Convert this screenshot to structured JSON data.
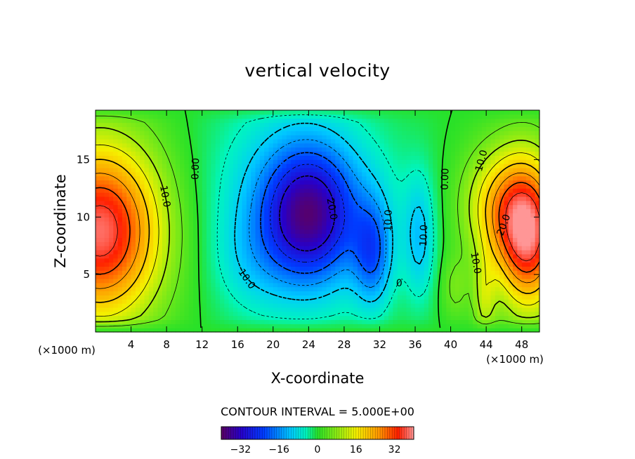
{
  "chart_data": {
    "type": "heatmap",
    "title": "vertical velocity",
    "xlabel": "X-coordinate",
    "ylabel": "Z-coordinate",
    "x_unit": "(×1000 m)",
    "z_unit": "(×1000 m)",
    "xlim": [
      0,
      50
    ],
    "ylim": [
      0,
      19.3
    ],
    "x_ticks": [
      4,
      8,
      12,
      16,
      20,
      24,
      28,
      32,
      36,
      40,
      44,
      48
    ],
    "y_ticks": [
      5,
      10,
      15
    ],
    "contour_interval_text": "CONTOUR INTERVAL = 5.000E+00",
    "contour_labels": [
      {
        "text": "10.0",
        "x": 7.8,
        "z": 11.8,
        "rot": 80
      },
      {
        "text": "0.00",
        "x": 11.3,
        "z": 14.2,
        "rot": -88
      },
      {
        "text": "20.0",
        "x": 26.6,
        "z": 10.7,
        "rot": 80
      },
      {
        "text": "10.0",
        "x": 17.0,
        "z": 4.6,
        "rot": 55
      },
      {
        "text": "10.0",
        "x": 33.0,
        "z": 9.7,
        "rot": -88
      },
      {
        "text": "10.0",
        "x": 37.0,
        "z": 8.4,
        "rot": -88
      },
      {
        "text": "0",
        "x": 34.2,
        "z": 4.2,
        "rot": 0
      },
      {
        "text": "0.00",
        "x": 39.4,
        "z": 13.3,
        "rot": -88
      },
      {
        "text": "10.0",
        "x": 43.5,
        "z": 14.9,
        "rot": -75
      },
      {
        "text": "20.0",
        "x": 46.0,
        "z": 9.3,
        "rot": -70
      },
      {
        "text": "10.0",
        "x": 42.8,
        "z": 6.0,
        "rot": 80
      }
    ],
    "colorbar": {
      "min": -40,
      "max": 40,
      "ticks": [
        -32,
        -16,
        0,
        16,
        32
      ]
    },
    "field": {
      "background": 0,
      "blobs": [
        {
          "x": 0.5,
          "z": 8.8,
          "sx": 5.0,
          "sz": 5.5,
          "a": 38
        },
        {
          "x": 48.8,
          "z": 8.5,
          "sx": 2.6,
          "sz": 4.6,
          "a": 36
        },
        {
          "x": 45.2,
          "z": 11.0,
          "sx": 3.0,
          "sz": 3.6,
          "a": 16
        },
        {
          "x": 43.8,
          "z": 2.8,
          "sx": 0.9,
          "sz": 2.6,
          "a": 10
        },
        {
          "x": 40.5,
          "z": 3.8,
          "sx": 1.1,
          "sz": 2.0,
          "a": 6
        },
        {
          "x": 24.0,
          "z": 10.2,
          "sx": 3.6,
          "sz": 4.0,
          "a": -27
        },
        {
          "x": 21.5,
          "z": 11.5,
          "sx": 6.6,
          "sz": 6.6,
          "a": -8
        },
        {
          "x": 26.5,
          "z": 10.5,
          "sx": 7.0,
          "sz": 5.5,
          "a": -5
        },
        {
          "x": 31.2,
          "z": 6.8,
          "sx": 1.5,
          "sz": 3.2,
          "a": -16
        },
        {
          "x": 36.5,
          "z": 8.2,
          "sx": 1.2,
          "sz": 3.8,
          "a": -10
        },
        {
          "x": 17.5,
          "z": 6.0,
          "sx": 3.0,
          "sz": 3.0,
          "a": -4
        }
      ]
    }
  }
}
